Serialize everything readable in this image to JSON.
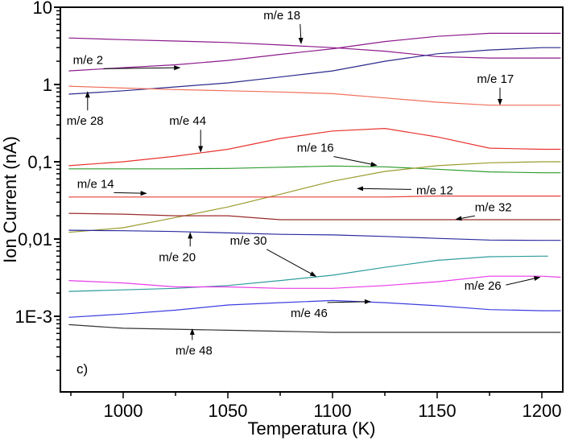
{
  "chart_data": {
    "type": "line",
    "title": "",
    "panel_label": "c)",
    "xlabel": "Temperatura (K)",
    "ylabel": "Ion Current (nA)",
    "xlim": [
      970,
      1210
    ],
    "ylim": [
      0.000105,
      10
    ],
    "yscale": "log",
    "grid": false,
    "legend": "none (inline annotations)",
    "x_ticks": [
      1000,
      1050,
      1100,
      1150,
      1200
    ],
    "x_tick_labels": [
      "1000",
      "1050",
      "1100",
      "1150",
      "1200"
    ],
    "y_ticks": [
      10,
      1,
      0.1,
      0.01,
      0.001
    ],
    "y_tick_labels": [
      "10",
      "1",
      "0,1",
      "0,01",
      "1E-3"
    ],
    "x": [
      974,
      1000,
      1025,
      1050,
      1075,
      1100,
      1125,
      1150,
      1175,
      1200,
      1209
    ],
    "series": [
      {
        "name": "m/e 18",
        "color": "#8b1a8b",
        "values": [
          4.0,
          3.8,
          3.65,
          3.5,
          3.25,
          3.0,
          2.7,
          2.3,
          2.2,
          2.2,
          2.2
        ]
      },
      {
        "name": "m/e 2",
        "color": "#8b1a8b",
        "values": [
          1.5,
          1.65,
          1.8,
          2.05,
          2.45,
          2.9,
          3.6,
          4.2,
          4.6,
          4.6,
          4.6
        ]
      },
      {
        "name": "m/e 28",
        "color": "#2a2a8c",
        "values": [
          0.75,
          0.83,
          0.93,
          1.05,
          1.25,
          1.5,
          2.0,
          2.5,
          2.8,
          3.0,
          3.0
        ]
      },
      {
        "name": "m/e 17",
        "color": "#ef6f5a",
        "values": [
          0.95,
          0.9,
          0.86,
          0.83,
          0.8,
          0.76,
          0.67,
          0.59,
          0.54,
          0.54,
          0.54
        ]
      },
      {
        "name": "m/e 44",
        "color": "#e8332e",
        "values": [
          0.089,
          0.1,
          0.118,
          0.145,
          0.2,
          0.25,
          0.27,
          0.21,
          0.15,
          0.145,
          0.145
        ]
      },
      {
        "name": "m/e 16",
        "color": "#2e9c2e",
        "values": [
          0.081,
          0.081,
          0.081,
          0.082,
          0.085,
          0.088,
          0.086,
          0.08,
          0.074,
          0.072,
          0.072
        ]
      },
      {
        "name": "m/e 12",
        "color": "#9c9c2e",
        "values": [
          0.0122,
          0.014,
          0.019,
          0.026,
          0.038,
          0.056,
          0.075,
          0.089,
          0.097,
          0.1,
          0.1
        ]
      },
      {
        "name": "m/e 14",
        "color": "#e8403c",
        "values": [
          0.035,
          0.035,
          0.035,
          0.035,
          0.035,
          0.035,
          0.035,
          0.036,
          0.036,
          0.036,
          0.036
        ]
      },
      {
        "name": "m/e 32",
        "color": "#9c2a2a",
        "values": [
          0.0215,
          0.021,
          0.02,
          0.02,
          0.0178,
          0.0178,
          0.0178,
          0.0178,
          0.0178,
          0.0178,
          0.0178
        ]
      },
      {
        "name": "m/e 20",
        "color": "#2a2aa0",
        "values": [
          0.013,
          0.0128,
          0.0125,
          0.012,
          0.0115,
          0.0113,
          0.0108,
          0.0102,
          0.0097,
          0.0096,
          0.0096
        ]
      },
      {
        "name": "m/e 30",
        "color": "#2e9c9c",
        "values": [
          0.0021,
          0.0022,
          0.0023,
          0.0025,
          0.0029,
          0.0034,
          0.0043,
          0.0053,
          0.0059,
          0.006,
          null
        ]
      },
      {
        "name": "m/e 26",
        "color": "#e83ce8",
        "values": [
          0.0029,
          0.0027,
          0.0024,
          0.0024,
          0.0023,
          0.0023,
          0.0025,
          0.0028,
          0.0033,
          0.0033,
          0.0032
        ]
      },
      {
        "name": "m/e 46",
        "color": "#3c3ce0",
        "values": [
          0.00097,
          0.00107,
          0.0012,
          0.0014,
          0.0015,
          0.0016,
          0.0015,
          0.00137,
          0.00122,
          0.00118,
          0.00118
        ]
      },
      {
        "name": "m/e 48",
        "color": "#333333",
        "values": [
          0.00078,
          0.0007,
          0.00068,
          0.00066,
          0.00064,
          0.00062,
          0.00062,
          0.00062,
          0.00062,
          0.00062,
          0.00062
        ]
      }
    ],
    "annotations": [
      {
        "text": "m/e 18",
        "target": "m/e 18",
        "label_at": [
          1067,
          7.0
        ],
        "arrow_to": [
          1085,
          3.4
        ]
      },
      {
        "text": "m/e 2",
        "target": "m/e 2",
        "label_at": [
          976,
          1.85
        ],
        "arrow_to": [
          1027,
          1.65
        ]
      },
      {
        "text": "m/e 28",
        "target": "m/e 28",
        "label_at": [
          973,
          0.3
        ],
        "arrow_to": [
          983,
          0.8
        ]
      },
      {
        "text": "m/e 17",
        "target": "m/e 17",
        "label_at": [
          1169,
          1.05
        ],
        "arrow_to": [
          1180,
          0.55
        ]
      },
      {
        "text": "m/e 44",
        "target": "m/e 44",
        "label_at": [
          1022,
          0.3
        ],
        "arrow_to": [
          1037,
          0.135
        ]
      },
      {
        "text": "m/e 16",
        "target": "m/e 16",
        "label_at": [
          1083,
          0.135
        ],
        "arrow_to": [
          1121,
          0.09
        ]
      },
      {
        "text": "m/e 12",
        "target": "m/e 12",
        "label_at": [
          1140,
          0.038
        ],
        "arrow_to": [
          1112,
          0.045
        ]
      },
      {
        "text": "m/e 14",
        "target": "m/e 14",
        "label_at": [
          978,
          0.046
        ],
        "arrow_to": [
          1011,
          0.039
        ]
      },
      {
        "text": "m/e 32",
        "target": "m/e 32",
        "label_at": [
          1168,
          0.023
        ],
        "arrow_to": [
          1159,
          0.018
        ]
      },
      {
        "text": "m/e 20",
        "target": "m/e 20",
        "label_at": [
          1017,
          0.0052
        ],
        "arrow_to": [
          1032,
          0.012
        ]
      },
      {
        "text": "m/e 30",
        "target": "m/e 30",
        "label_at": [
          1051,
          0.0085
        ],
        "arrow_to": [
          1092,
          0.0033
        ]
      },
      {
        "text": "m/e 26",
        "target": "m/e 26",
        "label_at": [
          1163,
          0.0022
        ],
        "arrow_to": [
          1199,
          0.0032
        ]
      },
      {
        "text": "m/e 46",
        "target": "m/e 46",
        "label_at": [
          1080,
          0.00098
        ],
        "arrow_to": [
          1118,
          0.00155
        ]
      },
      {
        "text": "m/e 48",
        "target": "m/e 48",
        "label_at": [
          1025,
          0.00032
        ],
        "arrow_to": [
          1033,
          0.00068
        ]
      }
    ]
  }
}
